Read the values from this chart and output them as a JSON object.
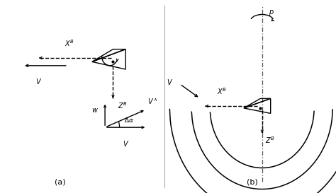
{
  "bg_color": "#ffffff",
  "line_color": "#000000",
  "fig_width": 4.74,
  "fig_height": 2.73,
  "label_a": "(a)",
  "label_b": "(b)"
}
